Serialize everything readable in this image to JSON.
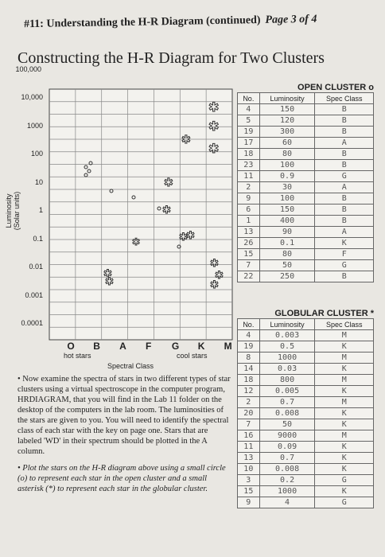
{
  "header": {
    "title": "#11: Understanding the H-R Diagram (continued)",
    "page": "Page 3 of 4"
  },
  "section_title": "Constructing the H-R Diagram for Two Clusters",
  "diagram": {
    "y_axis_title": "Luminosity",
    "y_axis_subtitle": "(Solar units)",
    "y_labels": [
      "100,000",
      "10,000",
      "1000",
      "100",
      "10",
      "1",
      "0.1",
      "0.01",
      "0.001",
      "0.0001"
    ],
    "x_labels": [
      "O",
      "B",
      "A",
      "F",
      "G",
      "K",
      "M"
    ],
    "hot_label": "hot stars",
    "cool_label": "cool stars",
    "x_axis_title": "Spectral Class"
  },
  "open_cluster": {
    "title": "OPEN CLUSTER o",
    "columns": [
      "No.",
      "Luminosity",
      "Spec Class"
    ],
    "rows": [
      [
        "4",
        "150",
        "B"
      ],
      [
        "5",
        "120",
        "B"
      ],
      [
        "19",
        "300",
        "B"
      ],
      [
        "17",
        "60",
        "A"
      ],
      [
        "18",
        "80",
        "B"
      ],
      [
        "23",
        "100",
        "B"
      ],
      [
        "11",
        "0.9",
        "G"
      ],
      [
        "2",
        "30",
        "A"
      ],
      [
        "9",
        "100",
        "B"
      ],
      [
        "6",
        "150",
        "B"
      ],
      [
        "1",
        "400",
        "B"
      ],
      [
        "13",
        "90",
        "A"
      ],
      [
        "26",
        "0.1",
        "K"
      ],
      [
        "15",
        "80",
        "F"
      ],
      [
        "7",
        "50",
        "G"
      ],
      [
        "22",
        "250",
        "B"
      ]
    ]
  },
  "globular_cluster": {
    "title": "GLOBULAR CLUSTER *",
    "columns": [
      "No.",
      "Luminosity",
      "Spec Class"
    ],
    "rows": [
      [
        "4",
        "0.003",
        "M"
      ],
      [
        "19",
        "0.5",
        "K"
      ],
      [
        "8",
        "1000",
        "M"
      ],
      [
        "14",
        "0.03",
        "K"
      ],
      [
        "18",
        "800",
        "M"
      ],
      [
        "12",
        "0.005",
        "K"
      ],
      [
        "2",
        "0.7",
        "M"
      ],
      [
        "20",
        "0.008",
        "K"
      ],
      [
        "7",
        "50",
        "K"
      ],
      [
        "16",
        "9000",
        "M"
      ],
      [
        "11",
        "0.09",
        "K"
      ],
      [
        "13",
        "0.7",
        "K"
      ],
      [
        "10",
        "0.008",
        "K"
      ],
      [
        "3",
        "0.2",
        "G"
      ],
      [
        "15",
        "1000",
        "K"
      ],
      [
        "9",
        "4",
        "G"
      ]
    ]
  },
  "instructions": [
    "• Now examine the spectra of stars in two different types of star clusters using a virtual spectroscope in the computer program, HRDIAGRAM, that you will find in the Lab 11 folder on the desktop of the computers in the lab room. The luminosities of the stars are given to you. You will need to identify the spectral class of each star with the key on page one. Stars that are labeled 'WD' in their spectrum should be plotted in the A column.",
    "• Plot the stars on the H-R diagram above using a small circle (o) to represent each star in the open cluster and a small asterisk (*) to represent each star in the globular cluster."
  ]
}
